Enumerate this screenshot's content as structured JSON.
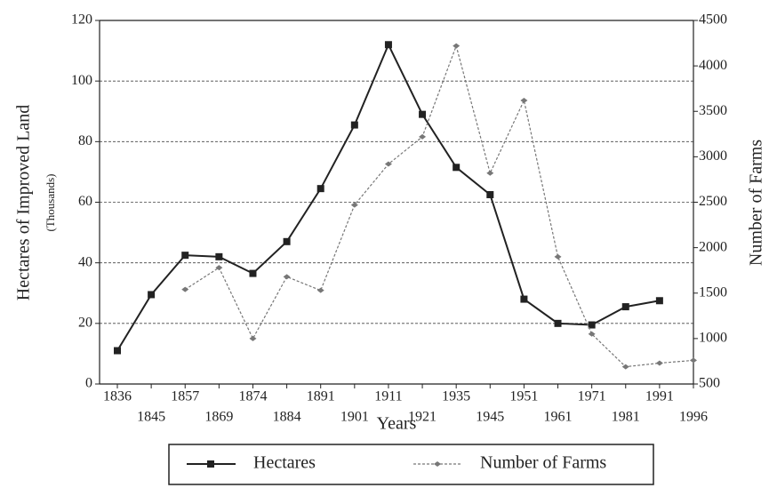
{
  "chart_data": {
    "type": "line",
    "x_label": "Years",
    "y_label": "Hectares  of Improved Land",
    "y_sublabel": "(Thousands)",
    "y2_label": "Number of Farms",
    "categories": [
      "1836",
      "1845",
      "1857",
      "1869",
      "1874",
      "1884",
      "1891",
      "1901",
      "1911",
      "1921",
      "1935",
      "1945",
      "1951",
      "1961",
      "1971",
      "1981",
      "1991",
      "1996"
    ],
    "series": [
      {
        "name": "Hectares",
        "color": "#222222",
        "values": [
          11,
          29.5,
          42.5,
          42,
          36.5,
          47,
          64.5,
          85.5,
          112,
          89,
          71.5,
          62.5,
          28,
          20,
          19.5,
          25.5,
          27.5,
          null
        ]
      },
      {
        "name": "Number of Farms",
        "color": "#777777",
        "axis": "y2",
        "values": [
          null,
          null,
          1540,
          1780,
          1000,
          1680,
          1530,
          2470,
          2920,
          3220,
          4220,
          2820,
          3620,
          1900,
          1050,
          690,
          730,
          760
        ]
      }
    ],
    "ylim": [
      0,
      120
    ],
    "yticks": [
      0,
      20,
      40,
      60,
      80,
      100,
      120
    ],
    "y2lim": [
      500,
      4500
    ],
    "y2ticks": [
      500,
      1000,
      1500,
      2000,
      2500,
      3000,
      3500,
      4000,
      4500
    ],
    "grid": true,
    "legend": "bottom"
  }
}
